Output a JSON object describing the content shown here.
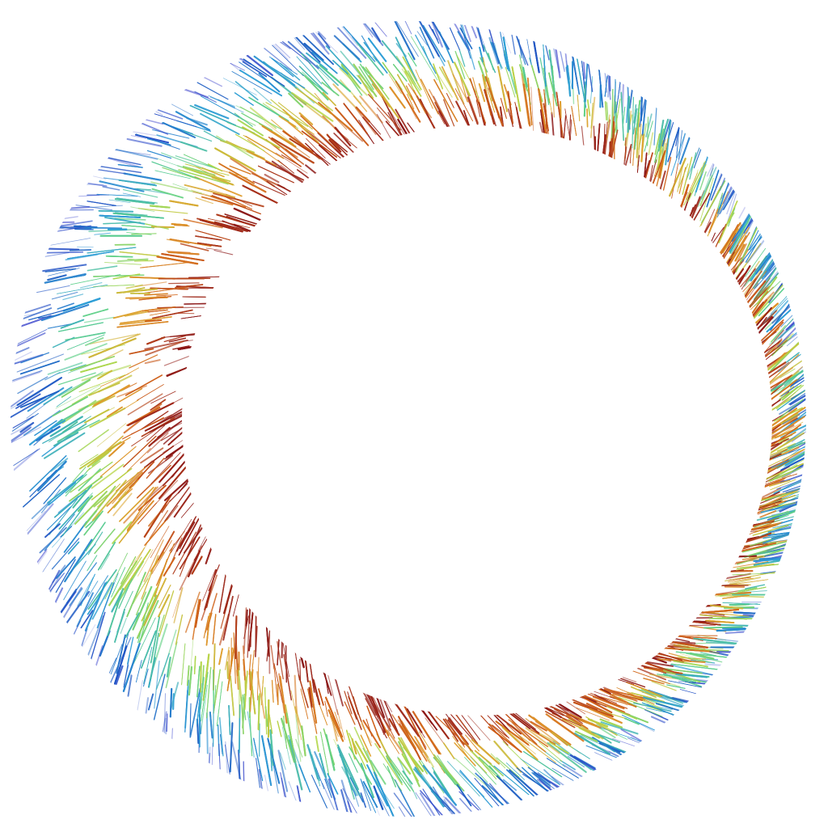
{
  "artwork": {
    "subject": "crescent",
    "style": "radial hatching strokes",
    "opening": "right",
    "background_color": "#ffffff",
    "gradient_outer_to_inner": [
      "#2a33c8",
      "#1f63c4",
      "#2f9fd6",
      "#5cd08a",
      "#b6d84a",
      "#e0a030",
      "#d06018",
      "#a02a1a",
      "#8a1616"
    ]
  }
}
